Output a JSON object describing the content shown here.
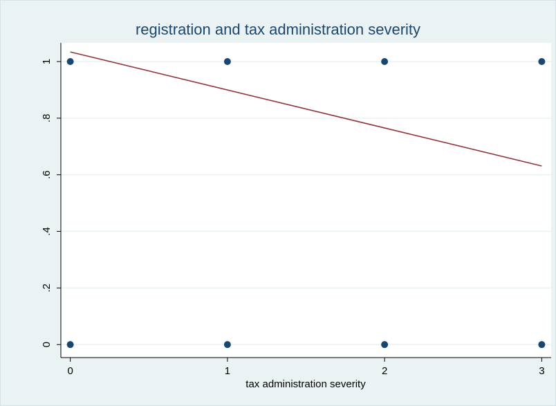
{
  "chart_data": {
    "type": "scatter",
    "title": "registration and tax administration severity",
    "x_label": "tax administration severity",
    "series": [
      {
        "type": "scatter",
        "color": "#1a476f",
        "x": [
          0,
          1,
          2,
          3,
          0,
          1,
          2,
          3
        ],
        "values": [
          1,
          1,
          1,
          1,
          0,
          0,
          0,
          0
        ]
      },
      {
        "type": "line",
        "color": "#90353b",
        "x": [
          0,
          3
        ],
        "values": [
          1.034,
          0.631
        ]
      }
    ],
    "xlim": [
      -0.06,
      3.06
    ],
    "xticks": [
      0,
      1,
      2,
      3
    ],
    "ylim": [
      -0.046,
      1.066
    ],
    "yticks": [
      0,
      {
        "value": 0.2,
        "label": ".2"
      },
      {
        "value": 0.4,
        "label": ".4"
      },
      {
        "value": 0.6,
        "label": ".6"
      },
      {
        "value": 0.8,
        "label": ".8"
      },
      1
    ],
    "grid": true
  }
}
